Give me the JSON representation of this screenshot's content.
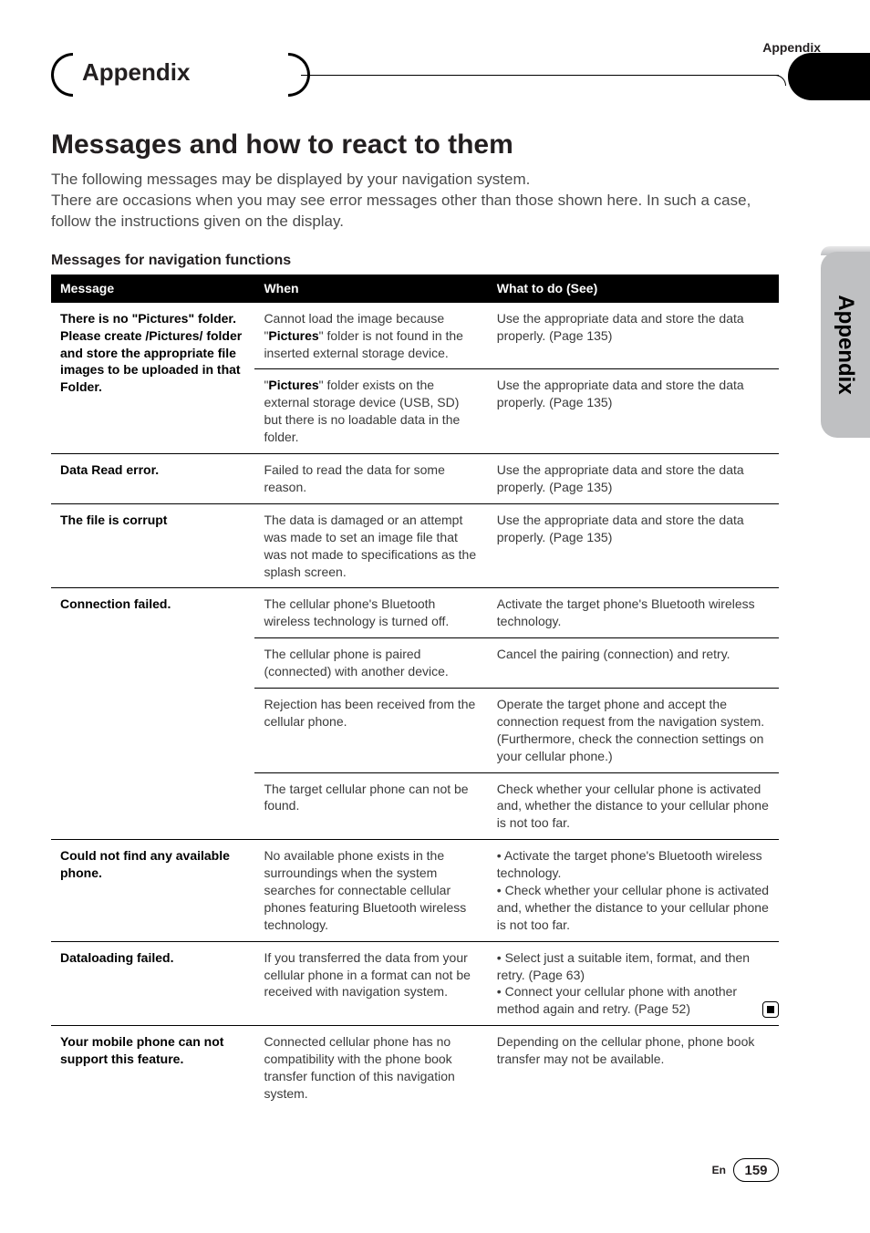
{
  "header": {
    "top_right_label": "Appendix",
    "section_title": "Appendix",
    "side_tab_label": "Appendix"
  },
  "main": {
    "heading": "Messages and how to react to them",
    "intro_line1": "The following messages may be displayed by your navigation system.",
    "intro_line2": "There are occasions when you may see error messages other than those shown here. In such a case, follow the instructions given on the display.",
    "subheading": "Messages for navigation functions"
  },
  "table": {
    "columns": {
      "c1": "Message",
      "c2": "When",
      "c3": "What to do (See)"
    },
    "col_widths_pct": [
      28,
      32,
      40
    ],
    "header_bg": "#000000",
    "header_fg": "#ffffff",
    "rule_color": "#000000",
    "body_font_size_pt": 10,
    "rows": [
      {
        "message": "There is no \"Pictures\" folder. Please create /Pictures/ folder and store the appropriate file images to be uploaded in that Folder.",
        "subrows": [
          {
            "when_pre": "Cannot load the image because \"",
            "when_bold": "Pictures",
            "when_post": "\" folder is not found in the inserted external storage device.",
            "what": "Use the appropriate data and store the data properly. (Page 135)"
          },
          {
            "when_pre": "\"",
            "when_bold": "Pictures",
            "when_post": "\" folder exists on the external storage device (USB, SD) but there is no loadable data in the folder.",
            "what": "Use the appropriate data and store the data properly. (Page 135)"
          }
        ]
      },
      {
        "message": "Data Read error.",
        "subrows": [
          {
            "when": "Failed to read the data for some reason.",
            "what": "Use the appropriate data and store the data properly. (Page 135)"
          }
        ]
      },
      {
        "message": "The file is corrupt",
        "subrows": [
          {
            "when": "The data is damaged or an attempt was made to set an image file that was not made to specifications as the splash screen.",
            "what": "Use the appropriate data and store the data properly. (Page 135)"
          }
        ]
      },
      {
        "message": "Connection failed.",
        "subrows": [
          {
            "when": "The cellular phone's Bluetooth wireless technology is turned off.",
            "what": "Activate the target phone's Bluetooth wireless technology."
          },
          {
            "when": "The cellular phone is paired (connected) with another device.",
            "what": "Cancel the pairing (connection) and retry."
          },
          {
            "when": "Rejection has been received from the cellular phone.",
            "what": "Operate the target phone and accept the connection request from the navigation system. (Furthermore, check the connection settings on your cellular phone.)"
          },
          {
            "when": "The target cellular phone can not be found.",
            "what": "Check whether your cellular phone is activated and, whether the distance to your cellular phone is not too far."
          }
        ]
      },
      {
        "message": "Could not find any available phone.",
        "subrows": [
          {
            "when": "No available phone exists in the surroundings when the system searches for connectable cellular phones featuring Bluetooth wireless technology.",
            "what": "• Activate the target phone's Bluetooth wireless technology.\n• Check whether your cellular phone is activated and, whether the distance to your cellular phone is not too far."
          }
        ]
      },
      {
        "message": "Dataloading failed.",
        "subrows": [
          {
            "when": "If you transferred the data from your cellular phone in a format can not be received with navigation system.",
            "what": "• Select just a suitable item, format, and then retry. (Page 63)\n• Connect your cellular phone with another method again and retry. (Page 52)"
          }
        ]
      },
      {
        "message": "Your mobile phone can not support this feature.",
        "subrows": [
          {
            "when": "Connected cellular phone has no compatibility with the phone book transfer function of this navigation system.",
            "what": "Depending on the cellular phone, phone book transfer may not be available."
          }
        ]
      }
    ]
  },
  "footer": {
    "lang": "En",
    "page": "159"
  },
  "colors": {
    "text": "#231f20",
    "muted": "#3a3a3a",
    "side_tab": "#bfc0c2"
  }
}
